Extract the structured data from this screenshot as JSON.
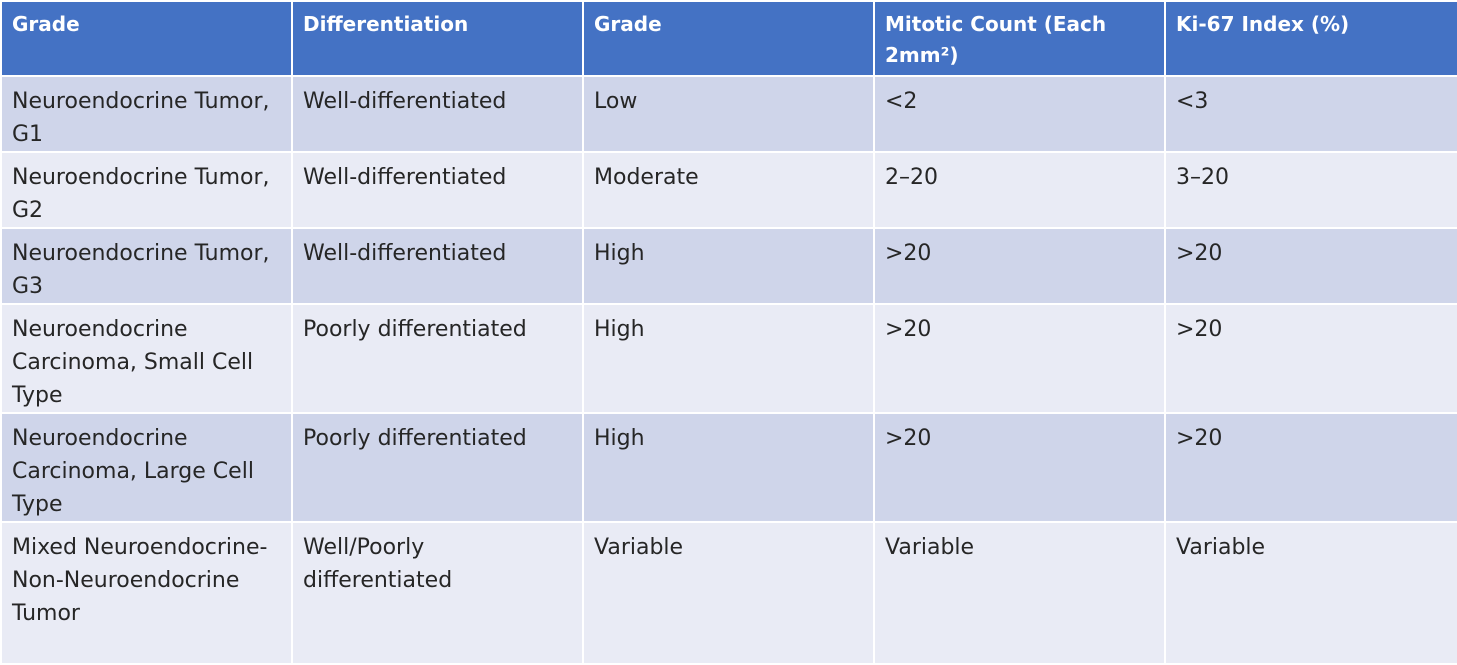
{
  "table": {
    "headers": [
      "Grade",
      "Differentiation",
      "Grade",
      "Mitotic Count (Each 2mm²)",
      "Ki-67 Index (%)"
    ],
    "rows": [
      [
        "Neuroendocrine Tumor, G1",
        "Well-differentiated",
        "Low",
        "<2",
        "<3"
      ],
      [
        "Neuroendocrine Tumor, G2",
        "Well-differentiated",
        "Moderate",
        "2–20",
        "3–20"
      ],
      [
        "Neuroendocrine Tumor, G3",
        "Well-differentiated",
        "High",
        ">20",
        ">20"
      ],
      [
        "Neuroendocrine Carcinoma, Small Cell Type",
        "Poorly differentiated",
        "High",
        ">20",
        ">20"
      ],
      [
        "Neuroendocrine Carcinoma, Large Cell Type",
        "Poorly differentiated",
        "High",
        ">20",
        ">20"
      ],
      [
        "Mixed Neuroendocrine-Non-Neuroendocrine Tumor",
        "Well/Poorly differentiated",
        "Variable",
        "Variable",
        "Variable"
      ]
    ]
  },
  "colors": {
    "header_bg": "#4472c4",
    "header_text": "#ffffff",
    "row_odd_bg": "#cfd5ea",
    "row_even_bg": "#e9ebf5",
    "body_text": "#262626"
  }
}
